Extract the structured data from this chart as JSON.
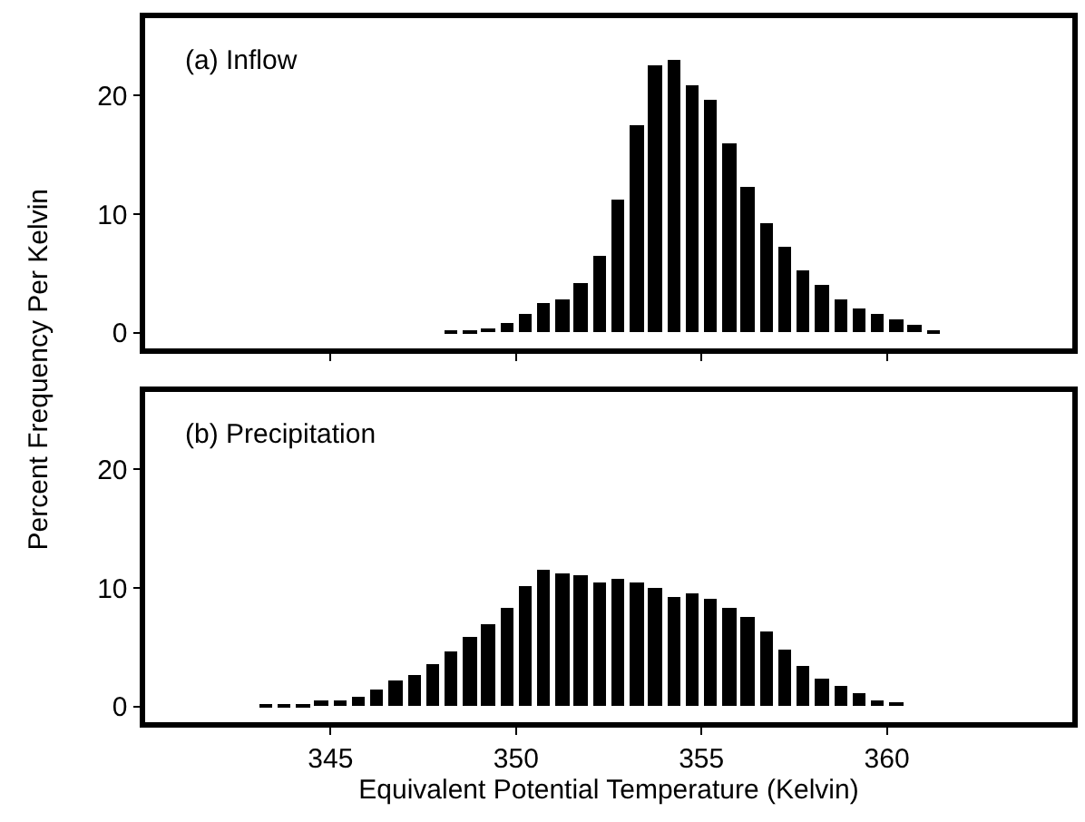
{
  "chart_data": [
    {
      "type": "histogram",
      "title": "(a) Inflow",
      "ylabel": "Percent Frequency Per Kelvin",
      "bins": [
        348.0,
        348.5,
        349.0,
        349.5,
        350.0,
        350.5,
        351.0,
        351.5,
        352.0,
        352.5,
        353.0,
        353.5,
        354.0,
        354.5,
        355.0,
        355.5,
        356.0,
        356.5,
        357.0,
        357.5,
        358.0,
        358.5,
        359.0,
        359.5,
        360.0,
        360.5,
        361.0,
        361.5
      ],
      "values": [
        0.1,
        0.2,
        0.4,
        0.8,
        1.6,
        2.5,
        2.9,
        4.2,
        6.5,
        11.2,
        17.5,
        22.6,
        23.0,
        20.9,
        19.6,
        15.9,
        12.3,
        9.3,
        7.2,
        5.2,
        4.0,
        2.8,
        2.1,
        1.6,
        1.1,
        0.7,
        0.3
      ],
      "color": "#000000",
      "xlim": [
        340,
        365
      ],
      "xticks": [
        {
          "value": 345,
          "label": null
        },
        {
          "value": 350,
          "label": null
        },
        {
          "value": 355,
          "label": null
        },
        {
          "value": 360,
          "label": null
        }
      ],
      "ylim": [
        -1.3,
        26.5
      ],
      "yticks": [
        0,
        10,
        20
      ],
      "tick_labels": "y"
    },
    {
      "type": "histogram",
      "title": "(b) Precipitation",
      "xlabel": "Equivalent Potential Temperature (Kelvin)",
      "bins": [
        343.0,
        343.5,
        344.0,
        344.5,
        345.0,
        345.5,
        346.0,
        346.5,
        347.0,
        347.5,
        348.0,
        348.5,
        349.0,
        349.5,
        350.0,
        350.5,
        351.0,
        351.5,
        352.0,
        352.5,
        353.0,
        353.5,
        354.0,
        354.5,
        355.0,
        355.5,
        356.0,
        356.5,
        357.0,
        357.5,
        358.0,
        358.5,
        359.0,
        359.5,
        360.0,
        360.5
      ],
      "values": [
        0.1,
        0.2,
        0.3,
        0.5,
        0.6,
        0.9,
        1.5,
        2.2,
        2.7,
        3.6,
        4.6,
        5.9,
        6.9,
        8.4,
        10.1,
        11.5,
        11.3,
        11.1,
        10.5,
        10.7,
        10.4,
        10.0,
        9.3,
        9.6,
        9.1,
        8.4,
        7.6,
        6.4,
        4.8,
        3.4,
        2.3,
        1.8,
        1.2,
        0.6,
        0.4
      ],
      "color": "#000000",
      "xlim": [
        340,
        365
      ],
      "xticks": [
        345,
        350,
        355,
        360
      ],
      "ylim": [
        -1.3,
        26.5
      ],
      "yticks": [
        0,
        10,
        20
      ]
    }
  ]
}
